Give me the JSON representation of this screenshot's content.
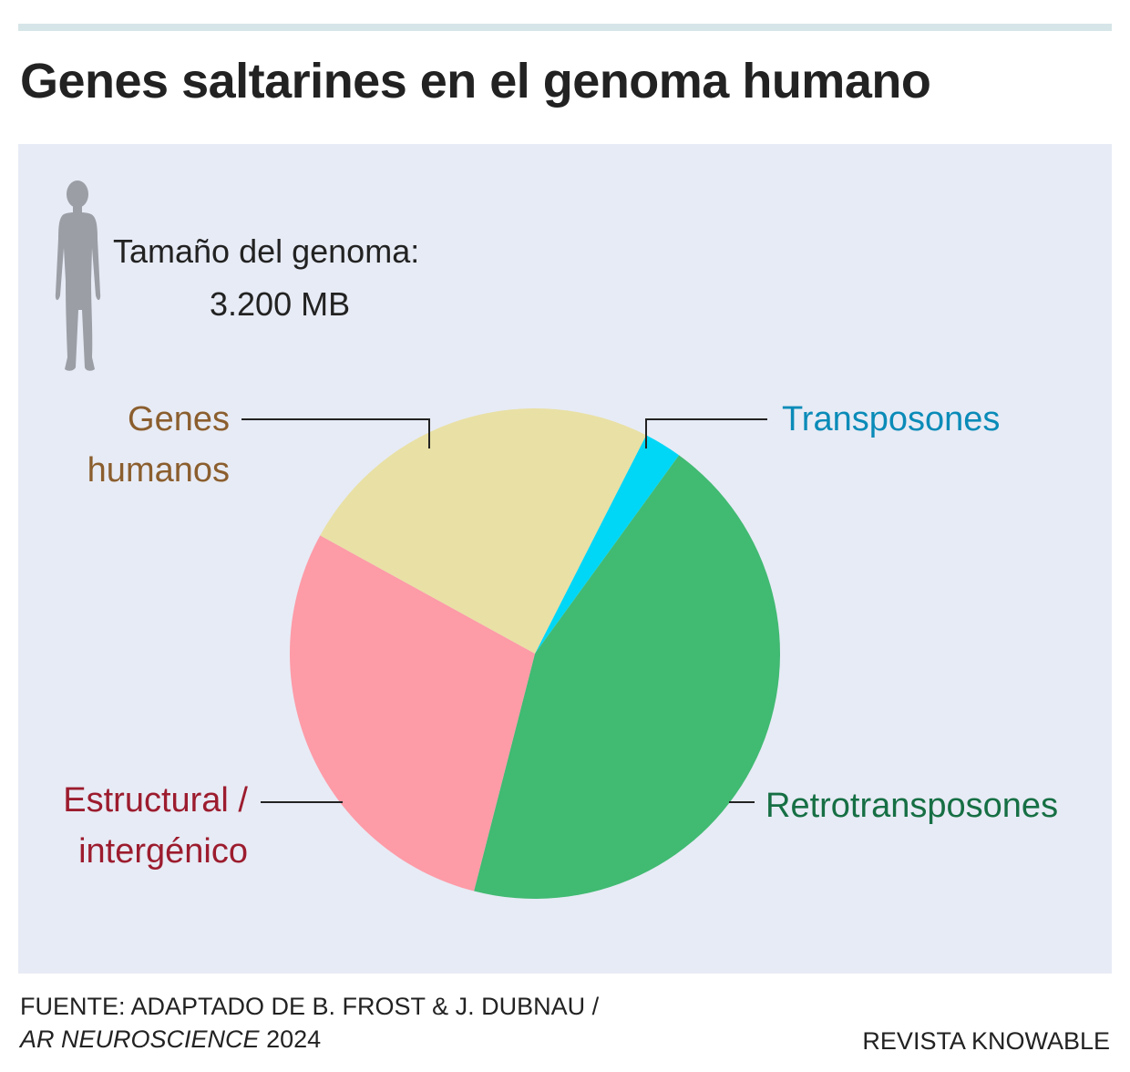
{
  "title": "Genes saltarines en el genoma humano",
  "genome": {
    "label": "Tamaño del genoma:",
    "value": "3.200 MB"
  },
  "chart_data": {
    "type": "pie",
    "title": "Genes saltarines en el genoma humano",
    "start_angle_deg": 297,
    "slices": [
      {
        "label": "Transposones",
        "value": 2.5,
        "color": "#00d7f6",
        "label_color": "#0a8bb8"
      },
      {
        "label": "Retrotransposones",
        "value": 44,
        "color": "#41ba72",
        "label_color": "#166f44"
      },
      {
        "label": "Estructural / intergénico",
        "value": 29,
        "color": "#fd9ba7",
        "label_color": "#9c1c2e"
      },
      {
        "label": "Genes humanos",
        "value": 24.5,
        "color": "#e9e0a5",
        "label_color": "#8b5e2e"
      }
    ]
  },
  "labels": {
    "genes_line1": "Genes",
    "genes_line2": "humanos",
    "transposones": "Transposones",
    "estructural_line1": "Estructural /",
    "estructural_line2": "intergénico",
    "retro": "Retrotransposones"
  },
  "footer": {
    "source_prefix": "FUENTE: ADAPTADO DE B. FROST & J. DUBNAU /",
    "journal": "AR NEUROSCIENCE",
    "year": "2024",
    "credit": "REVISTA KNOWABLE"
  },
  "colors": {
    "panel_bg": "#e7ebf5",
    "top_rule": "#d6e5e8",
    "figure_silhouette": "#9b9ea5",
    "leader_line": "#222222"
  },
  "icons": {
    "figure": "human-silhouette-icon"
  }
}
